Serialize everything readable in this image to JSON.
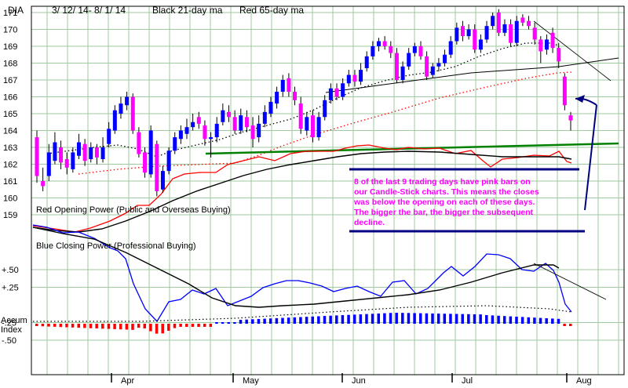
{
  "title": {
    "ticker": "DIA",
    "date_range": "3/ 12/ 14- 8/ 1/ 14",
    "legend_black": "Black 21-day ma",
    "legend_red": "Red 65-day ma"
  },
  "panel_labels": {
    "red_power": "Red Opening Power (Public and Overseas Buying)",
    "blue_power": "Blue Closing Power (Professional Buying)",
    "accum_line1": "Accum",
    "accum_line2": "Index"
  },
  "annotation": {
    "lines": [
      "8 of the last 9 trading days have pink bars on",
      "our Candle-Stick charts.  This means the closes",
      "was below the opening on each of these days.",
      "The bigger the bar, the bigger the subsequent",
      "decline."
    ]
  },
  "colors": {
    "background": "#ffffff",
    "grid": "#9fc99f",
    "pink": "#ff00ff",
    "blue": "#0000ff",
    "red": "#ff0000",
    "black": "#000000",
    "green": "#008000",
    "navy": "#000080"
  },
  "chart_data": [
    {
      "type": "candlestick",
      "ylim": [
        158.5,
        171.4
      ],
      "yticks": [
        159,
        160,
        161,
        162,
        163,
        164,
        165,
        166,
        167,
        168,
        169,
        170,
        171
      ],
      "x_months": [
        "Apr",
        "May",
        "Jun",
        "Jul",
        "Aug"
      ],
      "candles": [
        {
          "o": 163.6,
          "c": 161.3,
          "h": 164.0,
          "l": 160.9,
          "pink": true
        },
        {
          "o": 161.0,
          "c": 160.7,
          "h": 161.8,
          "l": 160.4,
          "pink": true
        },
        {
          "o": 161.3,
          "c": 162.7,
          "h": 163.2,
          "l": 161.0,
          "pink": false
        },
        {
          "o": 162.2,
          "c": 163.3,
          "h": 163.9,
          "l": 162.0,
          "pink": false
        },
        {
          "o": 163.0,
          "c": 162.1,
          "h": 163.4,
          "l": 161.7,
          "pink": true
        },
        {
          "o": 162.3,
          "c": 161.8,
          "h": 162.7,
          "l": 161.4,
          "pink": true
        },
        {
          "o": 161.7,
          "c": 162.7,
          "h": 163.0,
          "l": 161.5,
          "pink": false
        },
        {
          "o": 162.5,
          "c": 163.3,
          "h": 163.8,
          "l": 162.3,
          "pink": false
        },
        {
          "o": 163.2,
          "c": 162.2,
          "h": 163.5,
          "l": 161.9,
          "pink": true
        },
        {
          "o": 162.3,
          "c": 163.0,
          "h": 163.3,
          "l": 162.1,
          "pink": false
        },
        {
          "o": 163.0,
          "c": 162.4,
          "h": 163.2,
          "l": 162.0,
          "pink": true
        },
        {
          "o": 162.3,
          "c": 163.0,
          "h": 163.6,
          "l": 162.1,
          "pink": false
        },
        {
          "o": 163.2,
          "c": 164.1,
          "h": 164.5,
          "l": 163.0,
          "pink": false
        },
        {
          "o": 164.0,
          "c": 165.2,
          "h": 165.5,
          "l": 163.8,
          "pink": false
        },
        {
          "o": 165.0,
          "c": 165.6,
          "h": 166.0,
          "l": 164.7,
          "pink": false
        },
        {
          "o": 165.5,
          "c": 166.0,
          "h": 166.3,
          "l": 165.2,
          "pink": false
        },
        {
          "o": 166.0,
          "c": 164.0,
          "h": 166.2,
          "l": 163.8,
          "pink": true
        },
        {
          "o": 163.9,
          "c": 162.6,
          "h": 164.2,
          "l": 162.4,
          "pink": true
        },
        {
          "o": 162.7,
          "c": 161.5,
          "h": 163.0,
          "l": 161.2,
          "pink": true
        },
        {
          "o": 161.4,
          "c": 164.0,
          "h": 164.3,
          "l": 161.2,
          "pink": false
        },
        {
          "o": 163.2,
          "c": 160.4,
          "h": 163.4,
          "l": 160.1,
          "pink": true
        },
        {
          "o": 160.5,
          "c": 161.6,
          "h": 161.9,
          "l": 160.3,
          "pink": false
        },
        {
          "o": 161.6,
          "c": 162.8,
          "h": 163.0,
          "l": 161.4,
          "pink": false
        },
        {
          "o": 162.8,
          "c": 163.6,
          "h": 163.9,
          "l": 162.6,
          "pink": false
        },
        {
          "o": 163.5,
          "c": 164.0,
          "h": 164.3,
          "l": 163.2,
          "pink": false
        },
        {
          "o": 163.8,
          "c": 164.2,
          "h": 164.7,
          "l": 163.5,
          "pink": false
        },
        {
          "o": 164.2,
          "c": 164.5,
          "h": 165.0,
          "l": 164.0,
          "pink": false
        },
        {
          "o": 164.8,
          "c": 164.4,
          "h": 165.1,
          "l": 164.1,
          "pink": true
        },
        {
          "o": 164.3,
          "c": 163.5,
          "h": 164.6,
          "l": 163.1,
          "pink": true
        },
        {
          "o": 163.5,
          "c": 163.6,
          "h": 163.9,
          "l": 162.4,
          "pink": false
        },
        {
          "o": 163.6,
          "c": 164.4,
          "h": 164.8,
          "l": 163.3,
          "pink": false
        },
        {
          "o": 164.5,
          "c": 165.2,
          "h": 165.6,
          "l": 164.3,
          "pink": false
        },
        {
          "o": 165.1,
          "c": 164.8,
          "h": 165.5,
          "l": 164.5,
          "pink": true
        },
        {
          "o": 164.8,
          "c": 164.0,
          "h": 165.2,
          "l": 163.8,
          "pink": true
        },
        {
          "o": 164.0,
          "c": 164.9,
          "h": 165.3,
          "l": 163.8,
          "pink": false
        },
        {
          "o": 164.8,
          "c": 164.2,
          "h": 165.2,
          "l": 163.9,
          "pink": true
        },
        {
          "o": 164.3,
          "c": 163.5,
          "h": 164.8,
          "l": 163.0,
          "pink": true
        },
        {
          "o": 163.6,
          "c": 164.4,
          "h": 164.9,
          "l": 163.3,
          "pink": false
        },
        {
          "o": 164.4,
          "c": 165.1,
          "h": 165.5,
          "l": 164.2,
          "pink": false
        },
        {
          "o": 165.0,
          "c": 165.7,
          "h": 166.0,
          "l": 164.8,
          "pink": false
        },
        {
          "o": 165.6,
          "c": 166.3,
          "h": 166.6,
          "l": 165.3,
          "pink": false
        },
        {
          "o": 166.3,
          "c": 167.0,
          "h": 167.3,
          "l": 166.0,
          "pink": false
        },
        {
          "o": 167.1,
          "c": 166.3,
          "h": 167.4,
          "l": 166.0,
          "pink": true
        },
        {
          "o": 166.3,
          "c": 165.8,
          "h": 166.6,
          "l": 165.5,
          "pink": true
        },
        {
          "o": 165.6,
          "c": 164.1,
          "h": 166.0,
          "l": 163.8,
          "pink": true
        },
        {
          "o": 164.0,
          "c": 164.8,
          "h": 165.1,
          "l": 163.7,
          "pink": false
        },
        {
          "o": 164.9,
          "c": 163.6,
          "h": 165.2,
          "l": 163.3,
          "pink": true
        },
        {
          "o": 163.6,
          "c": 164.8,
          "h": 165.1,
          "l": 163.4,
          "pink": false
        },
        {
          "o": 164.8,
          "c": 165.8,
          "h": 166.1,
          "l": 164.6,
          "pink": false
        },
        {
          "o": 165.8,
          "c": 166.5,
          "h": 166.8,
          "l": 165.6,
          "pink": false
        },
        {
          "o": 166.5,
          "c": 166.0,
          "h": 166.8,
          "l": 165.8,
          "pink": true
        },
        {
          "o": 166.0,
          "c": 166.8,
          "h": 167.1,
          "l": 165.8,
          "pink": false
        },
        {
          "o": 166.8,
          "c": 167.3,
          "h": 167.6,
          "l": 166.6,
          "pink": false
        },
        {
          "o": 167.3,
          "c": 166.9,
          "h": 167.6,
          "l": 166.6,
          "pink": true
        },
        {
          "o": 166.9,
          "c": 167.6,
          "h": 168.0,
          "l": 166.7,
          "pink": false
        },
        {
          "o": 167.7,
          "c": 168.4,
          "h": 168.7,
          "l": 167.5,
          "pink": false
        },
        {
          "o": 168.4,
          "c": 169.0,
          "h": 169.3,
          "l": 168.2,
          "pink": false
        },
        {
          "o": 169.0,
          "c": 169.3,
          "h": 169.5,
          "l": 168.7,
          "pink": false
        },
        {
          "o": 169.3,
          "c": 169.0,
          "h": 169.6,
          "l": 168.8,
          "pink": true
        },
        {
          "o": 169.0,
          "c": 168.6,
          "h": 169.3,
          "l": 168.3,
          "pink": true
        },
        {
          "o": 168.6,
          "c": 167.0,
          "h": 168.9,
          "l": 166.8,
          "pink": true
        },
        {
          "o": 167.0,
          "c": 167.8,
          "h": 168.1,
          "l": 166.8,
          "pink": false
        },
        {
          "o": 167.8,
          "c": 168.6,
          "h": 168.9,
          "l": 167.6,
          "pink": false
        },
        {
          "o": 168.6,
          "c": 169.0,
          "h": 169.2,
          "l": 168.4,
          "pink": false
        },
        {
          "o": 169.0,
          "c": 168.4,
          "h": 169.3,
          "l": 168.2,
          "pink": true
        },
        {
          "o": 168.4,
          "c": 167.2,
          "h": 168.7,
          "l": 167.0,
          "pink": true
        },
        {
          "o": 167.3,
          "c": 167.8,
          "h": 168.0,
          "l": 167.1,
          "pink": false
        },
        {
          "o": 167.8,
          "c": 168.0,
          "h": 168.3,
          "l": 167.5,
          "pink": false
        },
        {
          "o": 168.0,
          "c": 168.5,
          "h": 168.8,
          "l": 167.8,
          "pink": false
        },
        {
          "o": 168.5,
          "c": 169.3,
          "h": 169.6,
          "l": 168.3,
          "pink": false
        },
        {
          "o": 169.3,
          "c": 170.1,
          "h": 170.4,
          "l": 169.1,
          "pink": false
        },
        {
          "o": 170.2,
          "c": 169.6,
          "h": 170.5,
          "l": 169.3,
          "pink": true
        },
        {
          "o": 169.6,
          "c": 170.0,
          "h": 170.3,
          "l": 169.4,
          "pink": false
        },
        {
          "o": 170.0,
          "c": 168.8,
          "h": 170.3,
          "l": 168.6,
          "pink": true
        },
        {
          "o": 168.8,
          "c": 169.4,
          "h": 169.7,
          "l": 168.6,
          "pink": false
        },
        {
          "o": 169.4,
          "c": 170.2,
          "h": 170.5,
          "l": 169.2,
          "pink": false
        },
        {
          "o": 170.2,
          "c": 170.8,
          "h": 171.0,
          "l": 170.0,
          "pink": false
        },
        {
          "o": 171.0,
          "c": 169.8,
          "h": 171.2,
          "l": 169.6,
          "pink": true
        },
        {
          "o": 169.8,
          "c": 170.3,
          "h": 170.6,
          "l": 169.6,
          "pink": false
        },
        {
          "o": 170.3,
          "c": 169.2,
          "h": 170.6,
          "l": 169.0,
          "pink": true
        },
        {
          "o": 169.2,
          "c": 170.5,
          "h": 170.8,
          "l": 169.0,
          "pink": false
        },
        {
          "o": 170.7,
          "c": 170.4,
          "h": 170.9,
          "l": 170.2,
          "pink": true
        },
        {
          "o": 170.5,
          "c": 170.2,
          "h": 170.8,
          "l": 170.0,
          "pink": true
        },
        {
          "o": 170.1,
          "c": 169.4,
          "h": 170.4,
          "l": 169.1,
          "pink": true
        },
        {
          "o": 169.4,
          "c": 168.7,
          "h": 169.6,
          "l": 168.0,
          "pink": true
        },
        {
          "o": 168.8,
          "c": 169.4,
          "h": 169.7,
          "l": 168.5,
          "pink": false
        },
        {
          "o": 169.8,
          "c": 168.9,
          "h": 170.1,
          "l": 168.6,
          "pink": true
        },
        {
          "o": 168.9,
          "c": 168.1,
          "h": 169.2,
          "l": 167.7,
          "pink": true
        },
        {
          "o": 167.2,
          "c": 165.5,
          "h": 167.4,
          "l": 165.2,
          "pink": true
        },
        {
          "o": 164.9,
          "c": 164.6,
          "h": 165.1,
          "l": 164.0,
          "pink": true
        }
      ]
    },
    {
      "type": "line",
      "yticks_labels": [
        "+.50",
        "+.25",
        "-.25",
        "-.50"
      ],
      "yticks_values": [
        0.5,
        0.25,
        -0.25,
        -0.5
      ],
      "ylim": [
        -0.55,
        0.62
      ]
    }
  ]
}
